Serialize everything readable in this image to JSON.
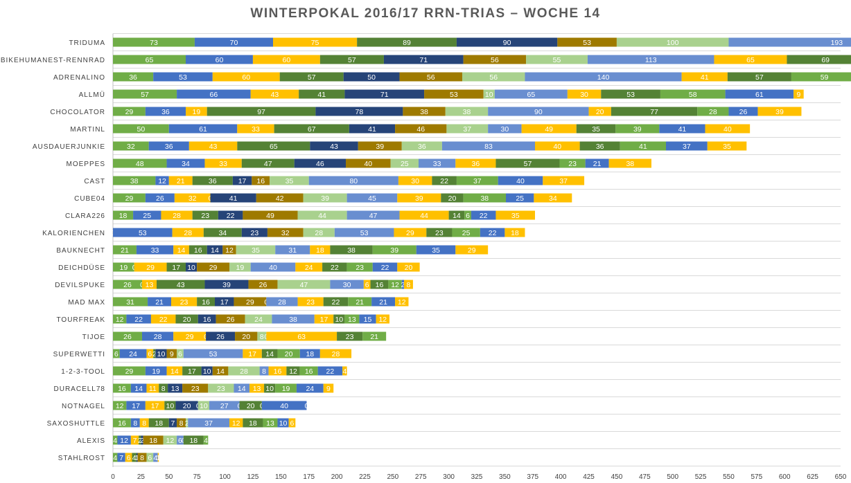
{
  "chart_data": {
    "type": "bar",
    "orientation": "horizontal",
    "stacked": true,
    "title": "WINTERPOKAL 2016/17 RRN-TRIAS – WOCHE 14",
    "xlabel": "",
    "ylabel": "",
    "xlim": [
      0,
      650
    ],
    "xticks": [
      0,
      25,
      50,
      75,
      100,
      125,
      150,
      175,
      200,
      225,
      250,
      275,
      300,
      325,
      350,
      375,
      400,
      425,
      450,
      475,
      500,
      525,
      550,
      575,
      600,
      625,
      650
    ],
    "grid": "horizontal-lines",
    "legend": "none",
    "palette": [
      "#70ad47",
      "#4472c4",
      "#ffc000",
      "#548235",
      "#264478",
      "#9e7a00",
      "#a9d18e",
      "#698ed0",
      "#ffc000",
      "#548235"
    ],
    "categories": [
      "TRIDUMA",
      "BIKEHUMANEST-RENNRAD",
      "ADRENALINO",
      "ALLMÜ",
      "CHOCOLATOR",
      "MARTINL",
      "AUSDAUERJUNKIE",
      "MOEPPES",
      "CAST",
      "CUBE04",
      "CLARA226",
      "KALORIENCHEN",
      "BAUKNECHT",
      "DEICHDÜSE",
      "DEVILSPUKE",
      "MAD MAX",
      "TOURFREAK",
      "TIJOE",
      "SUPERWETTI",
      "1-2-3-TOOL",
      "DURACELL78",
      "NOTNAGEL",
      "SAXOSHUTTLE",
      "ALEXIS",
      "STAHLROST"
    ],
    "rows": [
      {
        "name": "TRIDUMA",
        "values": [
          73,
          70,
          75,
          89,
          90,
          53,
          100,
          193
        ]
      },
      {
        "name": "BIKEHUMANEST-RENNRAD",
        "values": [
          65,
          60,
          60,
          57,
          71,
          56,
          55,
          113,
          65,
          69
        ]
      },
      {
        "name": "ADRENALINO",
        "values": [
          36,
          53,
          60,
          57,
          50,
          56,
          56,
          140,
          41,
          57,
          59
        ]
      },
      {
        "name": "ALLMÜ",
        "values": [
          57,
          66,
          43,
          41,
          71,
          53,
          10,
          65,
          30,
          53,
          58,
          61,
          9
        ]
      },
      {
        "name": "CHOCOLATOR",
        "values": [
          29,
          36,
          19,
          97,
          78,
          38,
          38,
          90,
          20,
          77,
          28,
          26,
          39
        ]
      },
      {
        "name": "MARTINL",
        "values": [
          50,
          61,
          33,
          67,
          41,
          46,
          37,
          30,
          49,
          35,
          39,
          41,
          40
        ]
      },
      {
        "name": "AUSDAUERJUNKIE",
        "values": [
          32,
          36,
          43,
          65,
          43,
          39,
          36,
          83,
          40,
          36,
          41,
          37,
          35
        ]
      },
      {
        "name": "MOEPPES",
        "values": [
          48,
          34,
          33,
          47,
          46,
          40,
          25,
          33,
          36,
          57,
          23,
          21,
          38
        ]
      },
      {
        "name": "CAST",
        "values": [
          38,
          12,
          21,
          36,
          17,
          16,
          35,
          80,
          30,
          22,
          37,
          40,
          37
        ]
      },
      {
        "name": "CUBE04",
        "values": [
          29,
          26,
          32,
          0,
          41,
          42,
          39,
          45,
          39,
          20,
          38,
          25,
          34
        ]
      },
      {
        "name": "CLARA226",
        "values": [
          18,
          25,
          28,
          23,
          22,
          49,
          44,
          47,
          44,
          14,
          6,
          22,
          35
        ]
      },
      {
        "name": "KALORIENCHEN",
        "values": [
          0,
          53,
          28,
          34,
          23,
          32,
          28,
          53,
          29,
          23,
          25,
          22,
          18
        ]
      },
      {
        "name": "BAUKNECHT",
        "values": [
          21,
          33,
          14,
          16,
          14,
          12,
          35,
          31,
          18,
          38,
          39,
          35,
          29
        ]
      },
      {
        "name": "DEICHDÜSE",
        "values": [
          19,
          0,
          29,
          17,
          10,
          29,
          19,
          40,
          24,
          22,
          23,
          22,
          20
        ]
      },
      {
        "name": "DEVILSPUKE",
        "values": [
          26,
          0,
          13,
          43,
          39,
          26,
          47,
          30,
          6,
          16,
          12,
          2,
          8
        ]
      },
      {
        "name": "MAD MAX",
        "values": [
          31,
          21,
          23,
          16,
          17,
          29,
          0,
          28,
          23,
          22,
          21,
          21,
          12
        ]
      },
      {
        "name": "TOURFREAK",
        "values": [
          12,
          22,
          22,
          20,
          16,
          26,
          24,
          38,
          17,
          10,
          13,
          15,
          12
        ]
      },
      {
        "name": "TIJOE",
        "values": [
          26,
          28,
          29,
          0,
          26,
          20,
          8,
          0,
          63,
          23,
          21
        ]
      },
      {
        "name": "SUPERWETTI",
        "values": [
          6,
          24,
          6,
          2,
          10,
          9,
          6,
          53,
          17,
          14,
          20,
          18,
          28
        ]
      },
      {
        "name": "1-2-3-TOOL",
        "values": [
          29,
          19,
          14,
          17,
          10,
          14,
          28,
          8,
          16,
          12,
          16,
          22,
          4
        ]
      },
      {
        "name": "DURACELL78",
        "values": [
          16,
          14,
          11,
          8,
          13,
          23,
          23,
          14,
          13,
          10,
          19,
          24,
          9
        ]
      },
      {
        "name": "NOTNAGEL",
        "values": [
          12,
          17,
          17,
          10,
          20,
          0,
          10,
          27,
          0,
          20,
          0,
          40,
          0
        ]
      },
      {
        "name": "SAXOSHUTTLE",
        "values": [
          16,
          8,
          8,
          18,
          7,
          8,
          2,
          37,
          12,
          18,
          13,
          10,
          6
        ]
      },
      {
        "name": "ALEXIS",
        "values": [
          4,
          12,
          7,
          2,
          2,
          18,
          12,
          6,
          0,
          18,
          4
        ]
      },
      {
        "name": "STAHLROST",
        "values": [
          4,
          7,
          6,
          4,
          1,
          8,
          6,
          4,
          1
        ]
      }
    ]
  }
}
